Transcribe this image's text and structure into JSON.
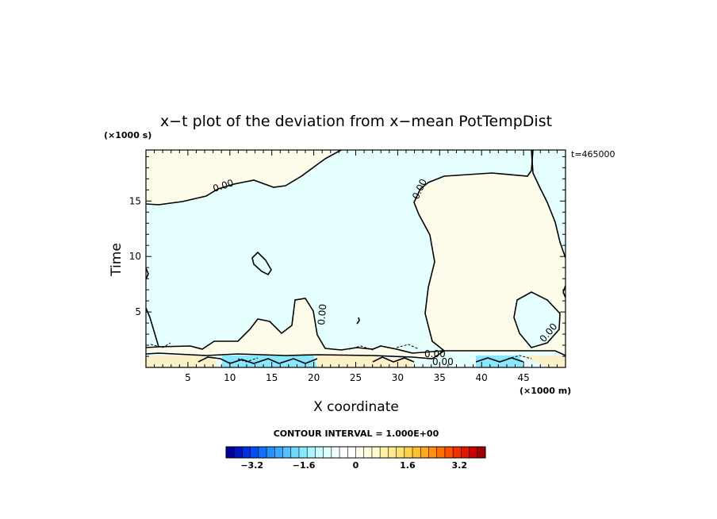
{
  "chart_data": {
    "type": "heatmap",
    "title": "x−t plot of the deviation from x−mean PotTempDist",
    "xlabel": "X coordinate",
    "ylabel": "Time",
    "xunit": "(×1000 m)",
    "yunit": "(×1000 s)",
    "time_label": "t=465000",
    "xlim": [
      0,
      50
    ],
    "ylim": [
      0,
      19.6
    ],
    "x_ticks": [
      5,
      10,
      15,
      20,
      25,
      30,
      35,
      40,
      45
    ],
    "x_tick_labels": [
      "5",
      "10",
      "15",
      "20",
      "25",
      "30",
      "35",
      "40",
      "45"
    ],
    "y_ticks": [
      5,
      10,
      15
    ],
    "y_tick_labels": [
      "5",
      "10",
      "15"
    ],
    "contour_label": "0.00",
    "contour_interval_text": "CONTOUR INTERVAL = 1.000E+00",
    "colorbar": {
      "min": -4,
      "max": 4,
      "tick_values": [
        -3.2,
        -1.6,
        0,
        1.6,
        3.2
      ],
      "tick_labels": [
        "−3.2",
        "−1.6",
        "0",
        "1.6",
        "3.2"
      ],
      "colors": [
        "#0000a0",
        "#0014c0",
        "#0030e0",
        "#0050f0",
        "#1070ff",
        "#2890ff",
        "#40a8ff",
        "#58c0ff",
        "#70d8ff",
        "#88e8ff",
        "#a8f4ff",
        "#c8fcff",
        "#e0ffff",
        "#f2ffff",
        "#ffffff",
        "#ffffff",
        "#fffff0",
        "#fffce0",
        "#fff8c8",
        "#fff0a8",
        "#ffe890",
        "#ffe070",
        "#ffd050",
        "#ffc030",
        "#ffa820",
        "#ff9010",
        "#ff7000",
        "#ff5000",
        "#f03000",
        "#e01800",
        "#c80000",
        "#a00000"
      ]
    },
    "field_colors": {
      "positive": "#fdfbe9",
      "negative": "#e5ffff",
      "positive_strong": "#fbf0c8",
      "negative_strong": "#88e8ff"
    }
  }
}
